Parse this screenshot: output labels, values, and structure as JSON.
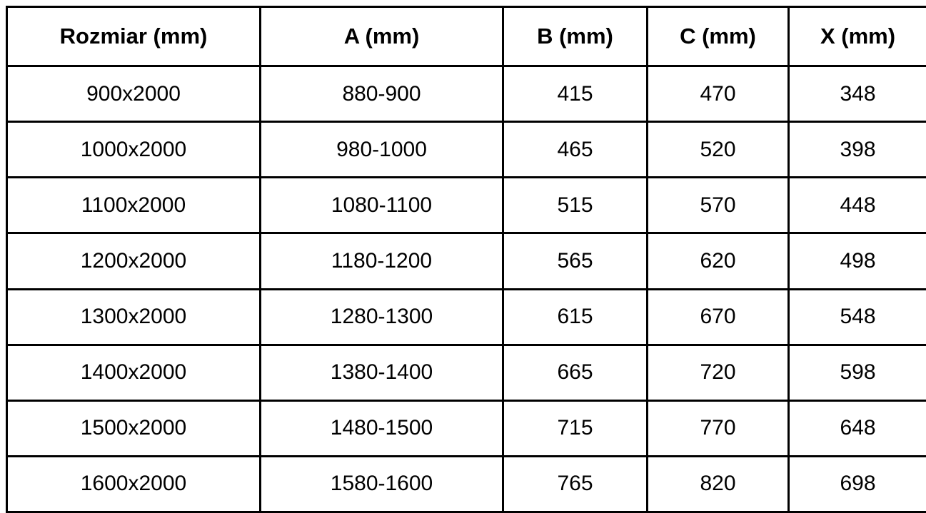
{
  "table": {
    "columns": [
      {
        "key": "rozmiar",
        "label": "Rozmiar (mm)"
      },
      {
        "key": "a",
        "label": "A (mm)"
      },
      {
        "key": "b",
        "label": "B (mm)"
      },
      {
        "key": "c",
        "label": "C (mm)"
      },
      {
        "key": "x",
        "label": "X (mm)"
      }
    ],
    "rows": [
      [
        "900x2000",
        "880-900",
        "415",
        "470",
        "348"
      ],
      [
        "1000x2000",
        "980-1000",
        "465",
        "520",
        "398"
      ],
      [
        "1100x2000",
        "1080-1100",
        "515",
        "570",
        "448"
      ],
      [
        "1200x2000",
        "1180-1200",
        "565",
        "620",
        "498"
      ],
      [
        "1300x2000",
        "1280-1300",
        "615",
        "670",
        "548"
      ],
      [
        "1400x2000",
        "1380-1400",
        "665",
        "720",
        "598"
      ],
      [
        "1500x2000",
        "1480-1500",
        "715",
        "770",
        "648"
      ],
      [
        "1600x2000",
        "1580-1600",
        "765",
        "820",
        "698"
      ]
    ]
  },
  "colors": {
    "border": "#000000",
    "background": "#ffffff",
    "text": "#000000"
  }
}
